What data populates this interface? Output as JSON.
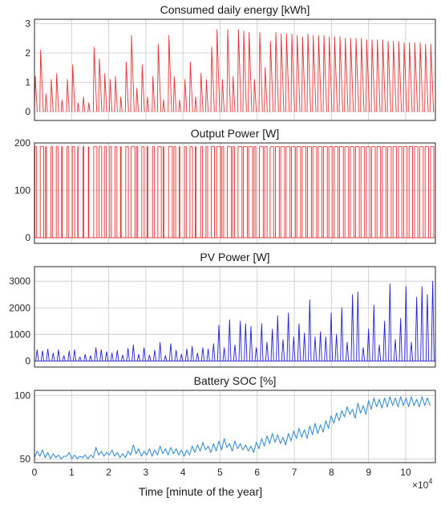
{
  "chart_data": [
    {
      "type": "line",
      "title": "Consumed daily energy [kWh]",
      "ylim": [
        -0.3,
        3.15
      ],
      "yticks": [
        0,
        1,
        2,
        3
      ],
      "color": "#e8312f",
      "style": "sawtooth",
      "x_window": 1440,
      "series": [
        {
          "x": [
            0,
            1440,
            2880,
            4320,
            5760,
            7200,
            8640,
            10080,
            11520,
            12960,
            14400,
            15840,
            17280,
            18720,
            20160,
            21600,
            23040,
            24480,
            25920,
            27360,
            28800,
            30240,
            31680,
            33120,
            34560,
            36000,
            37440,
            38880,
            40320,
            41760,
            43200,
            44640,
            46080,
            47520,
            48960,
            50400,
            51840,
            53280,
            54720,
            56160,
            57600,
            59040,
            60480,
            61920,
            63360,
            64800,
            66240,
            67680,
            69120,
            70560,
            72000,
            73440,
            74880,
            76320,
            77760,
            79200,
            80640,
            82080,
            83520,
            84960,
            86400,
            87840,
            89280,
            90720,
            92160,
            93600,
            95040,
            96480,
            97920,
            99360,
            100800,
            102240,
            103680,
            105120,
            106560
          ],
          "values": [
            1.2,
            2.1,
            0.6,
            1.1,
            1.3,
            0.4,
            1.1,
            1.6,
            0.3,
            0.5,
            0.3,
            2.2,
            1.8,
            1.3,
            1.1,
            1.2,
            0.5,
            1.7,
            2.6,
            0.8,
            1.6,
            0.5,
            1.2,
            2.3,
            0.4,
            2.6,
            1.2,
            0.4,
            1.1,
            1.7,
            0.5,
            1.3,
            1.1,
            2.2,
            2.8,
            1.1,
            2.8,
            1.2,
            2.8,
            2.75,
            2.7,
            1.1,
            2.7,
            1.5,
            2.4,
            2.7,
            2.65,
            2.65,
            2.65,
            2.6,
            2.55,
            2.65,
            2.6,
            2.6,
            2.6,
            2.55,
            2.55,
            2.55,
            2.5,
            2.5,
            2.5,
            2.5,
            2.45,
            2.45,
            2.45,
            2.45,
            2.4,
            2.4,
            2.4,
            2.35,
            2.35,
            2.35,
            2.35,
            2.3,
            2.3
          ]
        }
      ]
    },
    {
      "type": "line",
      "title": "Output Power [W]",
      "ylim": [
        -12,
        200
      ],
      "yticks": [
        0,
        100,
        200
      ],
      "color": "#e8312f",
      "style": "square",
      "series": [
        {
          "x": [
            0,
            1440,
            2880,
            4320,
            5760,
            7200,
            8640,
            10080,
            11520,
            12960,
            14400,
            15840,
            17280,
            18720,
            20160,
            21600,
            23040,
            24480,
            25920,
            27360,
            28800,
            30240,
            31680,
            33120,
            34560,
            36000,
            37440,
            38880,
            40320,
            41760,
            43200,
            44640,
            46080,
            47520,
            48960,
            50400,
            51840,
            53280,
            54720,
            56160,
            57600,
            59040,
            60480,
            61920,
            63360,
            64800,
            66240,
            67680,
            69120,
            70560,
            72000,
            73440,
            74880,
            76320,
            77760,
            79200,
            80640,
            82080,
            83520,
            84960,
            86400,
            87840,
            89280,
            90720,
            92160,
            93600,
            95040,
            96480,
            97920,
            99360,
            100800,
            102240,
            103680,
            105120,
            106560
          ],
          "on_value": 192,
          "on_fraction": [
            0.4,
            0.8,
            0.2,
            0.35,
            0.45,
            0.15,
            0.4,
            0.55,
            0.1,
            0.2,
            0.12,
            0.75,
            0.62,
            0.45,
            0.4,
            0.42,
            0.18,
            0.6,
            0.88,
            0.3,
            0.55,
            0.2,
            0.45,
            0.8,
            0.15,
            0.88,
            0.42,
            0.15,
            0.4,
            0.6,
            0.2,
            0.45,
            0.4,
            0.75,
            0.92,
            0.4,
            0.92,
            0.42,
            0.92,
            0.92,
            0.9,
            0.4,
            0.9,
            0.55,
            0.82,
            0.9,
            0.9,
            0.9,
            0.9,
            0.88,
            0.87,
            0.9,
            0.88,
            0.88,
            0.88,
            0.87,
            0.87,
            0.87,
            0.85,
            0.85,
            0.85,
            0.85,
            0.84,
            0.84,
            0.84,
            0.84,
            0.82,
            0.82,
            0.82,
            0.8,
            0.8,
            0.8,
            0.8,
            0.79,
            0.79
          ]
        }
      ]
    },
    {
      "type": "line",
      "title": "PV Power [W]",
      "ylim": [
        -230,
        3550
      ],
      "yticks": [
        0,
        1000,
        2000,
        3000
      ],
      "color": "#1f1fd6",
      "style": "peaks",
      "series": [
        {
          "x": [
            0,
            1440,
            2880,
            4320,
            5760,
            7200,
            8640,
            10080,
            11520,
            12960,
            14400,
            15840,
            17280,
            18720,
            20160,
            21600,
            23040,
            24480,
            25920,
            27360,
            28800,
            30240,
            31680,
            33120,
            34560,
            36000,
            37440,
            38880,
            40320,
            41760,
            43200,
            44640,
            46080,
            47520,
            48960,
            50400,
            51840,
            53280,
            54720,
            56160,
            57600,
            59040,
            60480,
            61920,
            63360,
            64800,
            66240,
            67680,
            69120,
            70560,
            72000,
            73440,
            74880,
            76320,
            77760,
            79200,
            80640,
            82080,
            83520,
            84960,
            86400,
            87840,
            89280,
            90720,
            92160,
            93600,
            95040,
            96480,
            97920,
            99360,
            100800,
            102240,
            103680,
            105120,
            106560
          ],
          "values": [
            420,
            380,
            450,
            300,
            420,
            200,
            380,
            420,
            150,
            250,
            200,
            500,
            420,
            350,
            300,
            400,
            220,
            480,
            600,
            250,
            500,
            220,
            400,
            700,
            200,
            650,
            400,
            250,
            450,
            550,
            300,
            500,
            450,
            650,
            1350,
            500,
            1550,
            600,
            1500,
            1400,
            1300,
            500,
            1400,
            700,
            1200,
            1700,
            800,
            1800,
            900,
            1400,
            1050,
            2300,
            900,
            1100,
            900,
            1800,
            1000,
            2000,
            700,
            2500,
            2600,
            500,
            1200,
            2100,
            600,
            1500,
            2900,
            800,
            1600,
            2800,
            700,
            2400,
            2800,
            2500,
            3000
          ]
        }
      ]
    },
    {
      "type": "line",
      "title": "Battery SOC [%]",
      "ylim": [
        47,
        104
      ],
      "yticks": [
        50,
        100
      ],
      "color": "#3b8fd8",
      "style": "line",
      "series": [
        {
          "x": [
            0,
            720,
            1440,
            2160,
            2880,
            3600,
            4320,
            5040,
            5760,
            6480,
            7200,
            7920,
            8640,
            9360,
            10080,
            10800,
            11520,
            12240,
            12960,
            13680,
            14400,
            15120,
            15840,
            16560,
            17280,
            18000,
            18720,
            19440,
            20160,
            20880,
            21600,
            22320,
            23040,
            23760,
            24480,
            25200,
            25920,
            26640,
            27360,
            28080,
            28800,
            29520,
            30240,
            30960,
            31680,
            32400,
            33120,
            33840,
            34560,
            35280,
            36000,
            36720,
            37440,
            38160,
            38880,
            39600,
            40320,
            41040,
            41760,
            42480,
            43200,
            43920,
            44640,
            45360,
            46080,
            46800,
            47520,
            48240,
            48960,
            49680,
            50400,
            51120,
            51840,
            52560,
            53280,
            54000,
            54720,
            55440,
            56160,
            56880,
            57600,
            58320,
            59040,
            59760,
            60480,
            61200,
            61920,
            62640,
            63360,
            64080,
            64800,
            65520,
            66240,
            66960,
            67680,
            68400,
            69120,
            69840,
            70560,
            71280,
            72000,
            72720,
            73440,
            74160,
            74880,
            75600,
            76320,
            77040,
            77760,
            78480,
            79200,
            79920,
            80640,
            81360,
            82080,
            82800,
            83520,
            84240,
            84960,
            85680,
            86400,
            87120,
            87840,
            88560,
            89280,
            90000,
            90720,
            91440,
            92160,
            92880,
            93600,
            94320,
            95040,
            95760,
            96480,
            97200,
            97920,
            98640,
            99360,
            100080,
            100800,
            101520,
            102240,
            102960,
            103680,
            104400,
            105120,
            105840,
            106560
          ],
          "values": [
            51,
            56,
            52,
            57,
            51,
            55,
            50,
            54,
            51,
            53,
            50,
            52,
            52,
            55,
            50,
            53,
            50,
            52,
            51,
            53,
            50,
            53,
            51,
            59,
            53,
            56,
            52,
            55,
            53,
            57,
            52,
            55,
            51,
            54,
            51,
            56,
            53,
            61,
            54,
            58,
            52,
            56,
            53,
            58,
            52,
            57,
            53,
            60,
            54,
            58,
            53,
            59,
            54,
            58,
            53,
            57,
            52,
            57,
            53,
            60,
            55,
            61,
            56,
            63,
            57,
            60,
            55,
            62,
            56,
            64,
            57,
            66,
            59,
            62,
            56,
            64,
            58,
            62,
            57,
            61,
            56,
            60,
            55,
            63,
            58,
            66,
            60,
            68,
            62,
            70,
            63,
            69,
            62,
            67,
            61,
            70,
            64,
            72,
            66,
            74,
            67,
            73,
            66,
            76,
            69,
            78,
            70,
            77,
            71,
            80,
            74,
            84,
            78,
            86,
            80,
            88,
            83,
            91,
            85,
            89,
            82,
            94,
            86,
            92,
            85,
            96,
            89,
            98,
            91,
            97,
            90,
            98,
            91,
            99,
            92,
            98,
            91,
            99,
            92,
            98,
            91,
            99,
            92,
            97,
            91,
            99,
            92,
            98,
            92
          ]
        }
      ]
    }
  ],
  "xaxis": {
    "xlim": [
      0,
      108000
    ],
    "ticks": [
      0,
      10000,
      20000,
      30000,
      40000,
      50000,
      60000,
      70000,
      80000,
      90000,
      100000
    ],
    "tick_labels": [
      "0",
      "1",
      "2",
      "3",
      "4",
      "5",
      "6",
      "7",
      "8",
      "9",
      "10"
    ],
    "xlabel": "Time [minute of the year]",
    "multiplier": "×10"
  },
  "grid": true
}
